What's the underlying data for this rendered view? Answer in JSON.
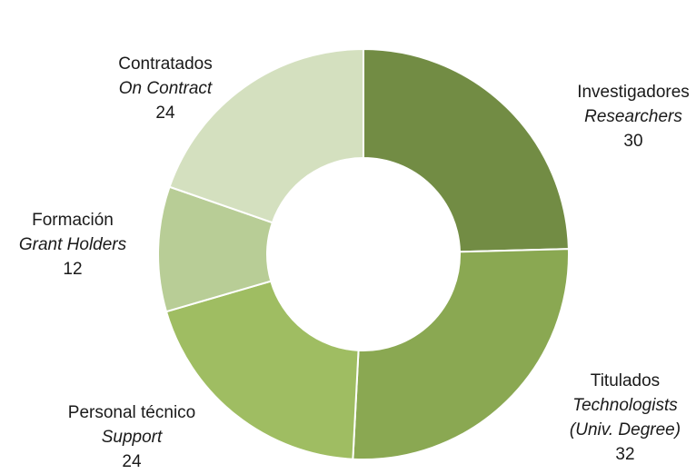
{
  "chart_data": {
    "type": "donut",
    "title": "",
    "slices": [
      {
        "label_es": "Investigadores",
        "label_en": "Researchers",
        "value": 30,
        "color": "#728c44"
      },
      {
        "label_es": "Titulados",
        "label_en": [
          "Technologists",
          "(Univ. Degree)"
        ],
        "value": 32,
        "color": "#8aa852"
      },
      {
        "label_es": "Personal técnico",
        "label_en": "Support",
        "value": 24,
        "color": "#9fbd62"
      },
      {
        "label_es": "Formación",
        "label_en": "Grant Holders",
        "value": 12,
        "color": "#b8cd96"
      },
      {
        "label_es": "Contratados",
        "label_en": "On Contract",
        "value": 24,
        "color": "#d4e0bf"
      }
    ],
    "legend": "none"
  }
}
